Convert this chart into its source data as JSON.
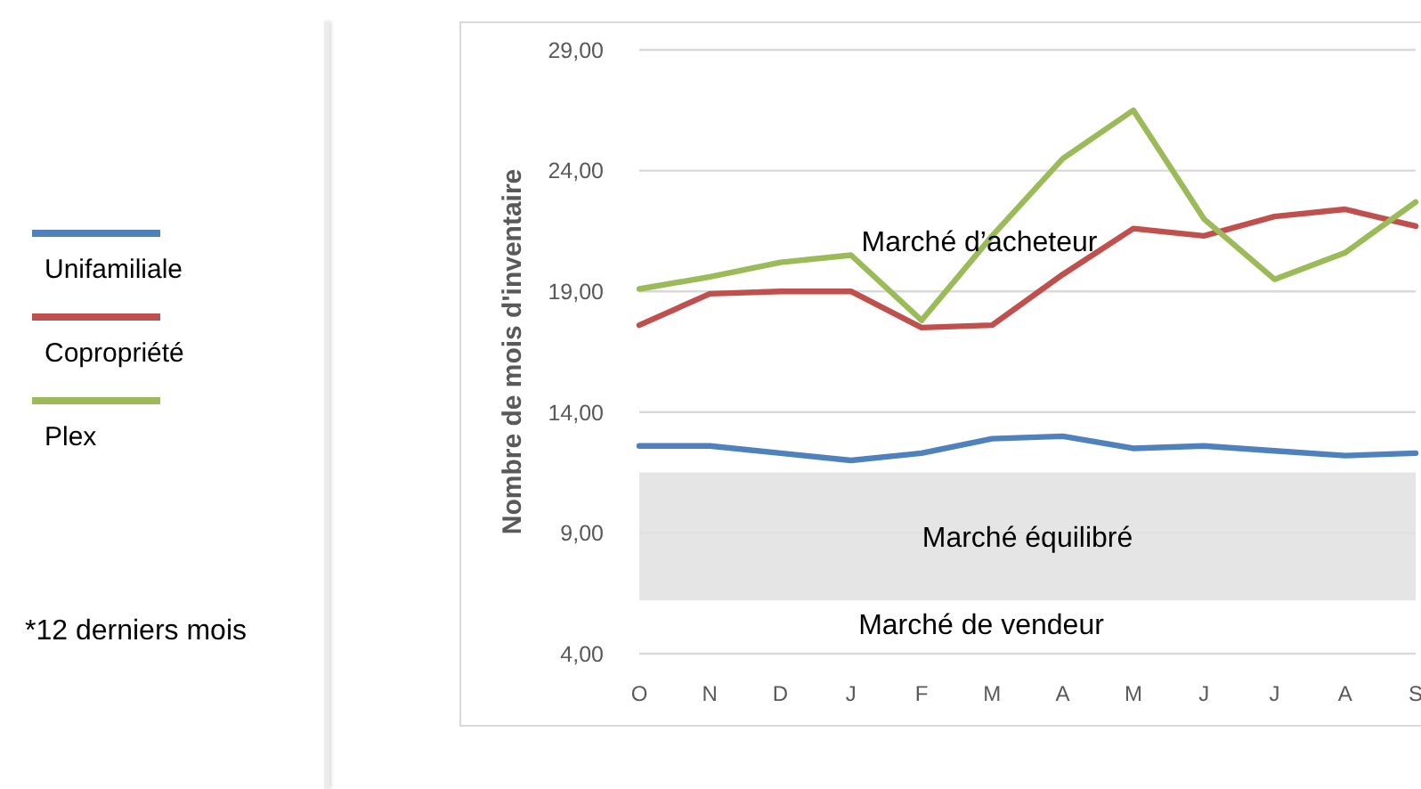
{
  "chart_data": {
    "type": "line",
    "ylabel": "Nombre de mois d'inventaire",
    "categories": [
      "O",
      "N",
      "D",
      "J",
      "F",
      "M",
      "A",
      "M",
      "J",
      "J",
      "A",
      "S"
    ],
    "series": [
      {
        "name": "Unifamiliale",
        "color": "#4f81bd",
        "values": [
          12.6,
          12.6,
          12.3,
          12.0,
          12.3,
          12.9,
          13.0,
          12.5,
          12.6,
          12.4,
          12.2,
          12.3
        ]
      },
      {
        "name": "Copropriété",
        "color": "#c0504d",
        "values": [
          17.6,
          18.9,
          19.0,
          19.0,
          17.5,
          17.6,
          19.7,
          21.6,
          21.3,
          22.1,
          22.4,
          21.7
        ]
      },
      {
        "name": "Plex",
        "color": "#9bbb59",
        "values": [
          19.1,
          19.6,
          20.2,
          20.5,
          17.8,
          21.3,
          24.5,
          26.5,
          22.0,
          19.5,
          20.6,
          22.7
        ]
      }
    ],
    "ylim": [
      4,
      29
    ],
    "yticks": [
      {
        "value": 4,
        "label": "4,00"
      },
      {
        "value": 9,
        "label": "9,00"
      },
      {
        "value": 14,
        "label": "14,00"
      },
      {
        "value": 19,
        "label": "19,00"
      },
      {
        "value": 24,
        "label": "24,00"
      },
      {
        "value": 29,
        "label": "29,00"
      }
    ],
    "bands": [
      {
        "axis": "y",
        "from": 6.2,
        "to": 11.5,
        "label": "Marché équilibré",
        "color": "#e1e1e1"
      }
    ],
    "annotations": [
      "Marché d’acheteur",
      "Marché de vendeur",
      "*12 derniers mois"
    ],
    "grid": "y",
    "legend": "left"
  }
}
